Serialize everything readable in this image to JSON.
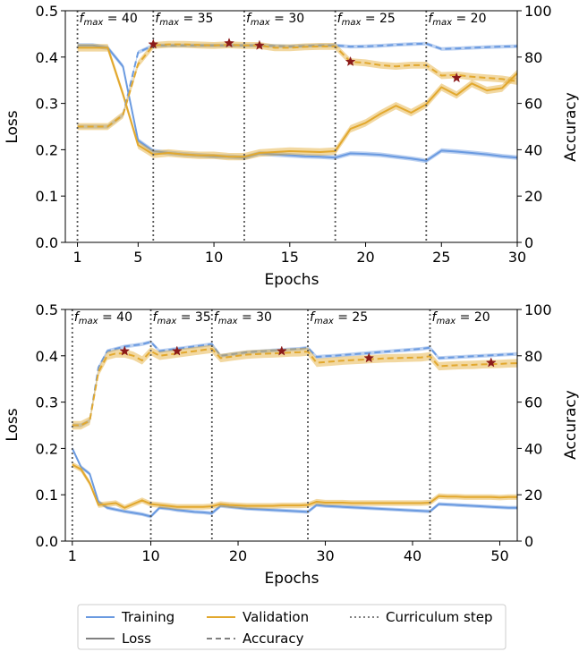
{
  "colors": {
    "training": "#6a9ae0",
    "validation": "#e2a82e",
    "marker": "#8b1a1a",
    "neutral": "#808080"
  },
  "legend": {
    "training": "Training",
    "validation": "Validation",
    "curriculum": "Curriculum step",
    "loss": "Loss",
    "accuracy": "Accuracy"
  },
  "chart_data": [
    {
      "type": "line",
      "xlabel": "Epochs",
      "ylabel_left": "Loss",
      "ylabel_right": "Accuracy",
      "xlim": [
        0.2,
        30
      ],
      "xticks": [
        1,
        5,
        10,
        15,
        20,
        25,
        30
      ],
      "ylim_left": [
        0,
        0.5
      ],
      "yticks_left": [
        0.0,
        0.1,
        0.2,
        0.3,
        0.4,
        0.5
      ],
      "ylim_right": [
        0,
        100
      ],
      "yticks_right": [
        0,
        20,
        40,
        60,
        80,
        100
      ],
      "curriculum_steps": [
        1,
        6,
        12,
        18,
        24
      ],
      "stage_labels": [
        {
          "x": 1,
          "base": "f",
          "sub": "max",
          "value": " = 40"
        },
        {
          "x": 6,
          "base": "f",
          "sub": "max",
          "value": " = 35"
        },
        {
          "x": 12,
          "base": "f",
          "sub": "max",
          "value": " = 30"
        },
        {
          "x": 18,
          "base": "f",
          "sub": "max",
          "value": " = 25"
        },
        {
          "x": 24,
          "base": "f",
          "sub": "max",
          "value": " = 20"
        }
      ],
      "series": [
        {
          "name": "Training",
          "metric": "Loss",
          "axis": "left",
          "band": 0.005,
          "x": [
            1,
            2,
            3,
            4,
            5,
            6,
            7,
            8,
            9,
            10,
            11,
            12,
            13,
            14,
            15,
            16,
            17,
            18,
            19,
            20,
            21,
            22,
            23,
            24,
            25,
            26,
            27,
            28,
            29,
            30
          ],
          "y": [
            0.425,
            0.425,
            0.42,
            0.38,
            0.22,
            0.197,
            0.193,
            0.19,
            0.188,
            0.186,
            0.185,
            0.183,
            0.192,
            0.19,
            0.188,
            0.186,
            0.185,
            0.183,
            0.192,
            0.191,
            0.189,
            0.185,
            0.181,
            0.176,
            0.198,
            0.196,
            0.193,
            0.19,
            0.186,
            0.183
          ]
        },
        {
          "name": "Validation",
          "metric": "Loss",
          "axis": "left",
          "band": 0.008,
          "x": [
            1,
            2,
            3,
            4,
            5,
            6,
            7,
            8,
            9,
            10,
            11,
            12,
            13,
            14,
            15,
            16,
            17,
            18,
            19,
            20,
            21,
            22,
            23,
            24,
            25,
            26,
            27,
            28,
            29,
            30
          ],
          "y": [
            0.42,
            0.42,
            0.42,
            0.32,
            0.21,
            0.19,
            0.193,
            0.19,
            0.188,
            0.188,
            0.185,
            0.185,
            0.193,
            0.195,
            0.197,
            0.196,
            0.195,
            0.197,
            0.245,
            0.258,
            0.278,
            0.295,
            0.28,
            0.298,
            0.335,
            0.318,
            0.343,
            0.328,
            0.333,
            0.365
          ]
        },
        {
          "name": "Training",
          "metric": "Accuracy",
          "axis": "right",
          "band": 0.8,
          "x": [
            1,
            2,
            3,
            4,
            5,
            6,
            7,
            8,
            9,
            10,
            11,
            12,
            13,
            14,
            15,
            16,
            17,
            18,
            19,
            20,
            21,
            22,
            23,
            24,
            25,
            26,
            27,
            28,
            29,
            30
          ],
          "y": [
            50,
            50,
            50,
            55,
            82,
            85,
            85,
            85,
            85,
            85,
            85,
            85,
            85,
            84.8,
            84.6,
            84.8,
            85,
            85,
            84.5,
            84.6,
            84.9,
            85.3,
            85.6,
            85.8,
            83.5,
            83.7,
            84,
            84.3,
            84.5,
            84.7
          ]
        },
        {
          "name": "Validation",
          "metric": "Accuracy",
          "axis": "right",
          "band": 1.5,
          "x": [
            1,
            2,
            3,
            4,
            5,
            6,
            7,
            8,
            9,
            10,
            11,
            12,
            13,
            14,
            15,
            16,
            17,
            18,
            19,
            20,
            21,
            22,
            23,
            24,
            25,
            26,
            27,
            28,
            29,
            30
          ],
          "y": [
            50,
            50,
            50,
            55,
            77,
            85,
            85.5,
            85.5,
            85.2,
            85,
            85.3,
            85,
            85,
            84,
            84,
            84.4,
            84.6,
            84.6,
            78,
            77.5,
            76.5,
            76,
            76.5,
            76.5,
            72,
            72.3,
            71.5,
            71,
            70.5,
            69.5
          ]
        }
      ],
      "best_markers": [
        {
          "x": 6,
          "y": 85.5
        },
        {
          "x": 11,
          "y": 86
        },
        {
          "x": 13,
          "y": 85
        },
        {
          "x": 19,
          "y": 78
        },
        {
          "x": 26,
          "y": 71
        }
      ]
    },
    {
      "type": "line",
      "xlabel": "Epochs",
      "ylabel_left": "Loss",
      "ylabel_right": "Accuracy",
      "xlim": [
        0.2,
        52
      ],
      "xticks": [
        1,
        10,
        20,
        30,
        40,
        50
      ],
      "ylim_left": [
        0,
        0.5
      ],
      "yticks_left": [
        0.0,
        0.1,
        0.2,
        0.3,
        0.4,
        0.5
      ],
      "ylim_right": [
        0,
        100
      ],
      "yticks_right": [
        0,
        20,
        40,
        60,
        80,
        100
      ],
      "curriculum_steps": [
        1,
        10,
        17,
        28,
        42
      ],
      "stage_labels": [
        {
          "x": 1,
          "base": "f",
          "sub": "max",
          "value": " = 40"
        },
        {
          "x": 10,
          "base": "f",
          "sub": "max",
          "value": " = 35"
        },
        {
          "x": 17,
          "base": "f",
          "sub": "max",
          "value": " = 30"
        },
        {
          "x": 28,
          "base": "f",
          "sub": "max",
          "value": " = 25"
        },
        {
          "x": 42,
          "base": "f",
          "sub": "max",
          "value": " = 20"
        }
      ],
      "series": [
        {
          "name": "Training",
          "metric": "Loss",
          "axis": "left",
          "band": 0.004,
          "x": [
            1,
            2,
            3,
            4,
            5,
            6,
            7,
            8,
            9,
            10,
            11,
            12,
            13,
            14,
            15,
            16,
            17,
            18,
            19,
            20,
            21,
            22,
            23,
            24,
            25,
            26,
            27,
            28,
            29,
            30,
            31,
            32,
            33,
            34,
            35,
            36,
            37,
            38,
            39,
            40,
            41,
            42,
            43,
            44,
            45,
            46,
            47,
            48,
            49,
            50,
            51,
            52
          ],
          "y": [
            0.2,
            0.16,
            0.145,
            0.085,
            0.072,
            0.068,
            0.064,
            0.061,
            0.058,
            0.053,
            0.072,
            0.07,
            0.067,
            0.065,
            0.063,
            0.062,
            0.06,
            0.076,
            0.074,
            0.072,
            0.07,
            0.069,
            0.068,
            0.067,
            0.066,
            0.065,
            0.064,
            0.063,
            0.078,
            0.076,
            0.075,
            0.074,
            0.073,
            0.072,
            0.071,
            0.07,
            0.069,
            0.068,
            0.067,
            0.066,
            0.065,
            0.064,
            0.08,
            0.079,
            0.078,
            0.077,
            0.076,
            0.075,
            0.074,
            0.073,
            0.072,
            0.072
          ]
        },
        {
          "name": "Validation",
          "metric": "Loss",
          "axis": "left",
          "band": 0.006,
          "x": [
            1,
            2,
            3,
            4,
            5,
            6,
            7,
            8,
            9,
            10,
            11,
            12,
            13,
            14,
            15,
            16,
            17,
            18,
            19,
            20,
            21,
            22,
            23,
            24,
            25,
            26,
            27,
            28,
            29,
            30,
            31,
            32,
            33,
            34,
            35,
            36,
            37,
            38,
            39,
            40,
            41,
            42,
            43,
            44,
            45,
            46,
            47,
            48,
            49,
            50,
            51,
            52
          ],
          "y": [
            0.165,
            0.155,
            0.125,
            0.078,
            0.08,
            0.082,
            0.072,
            0.08,
            0.088,
            0.08,
            0.078,
            0.076,
            0.074,
            0.074,
            0.074,
            0.074,
            0.075,
            0.08,
            0.078,
            0.077,
            0.076,
            0.076,
            0.076,
            0.076,
            0.077,
            0.077,
            0.077,
            0.078,
            0.085,
            0.083,
            0.083,
            0.083,
            0.082,
            0.082,
            0.082,
            0.082,
            0.082,
            0.082,
            0.082,
            0.082,
            0.082,
            0.083,
            0.097,
            0.096,
            0.096,
            0.095,
            0.095,
            0.095,
            0.095,
            0.094,
            0.095,
            0.095
          ]
        },
        {
          "name": "Training",
          "metric": "Accuracy",
          "axis": "right",
          "band": 0.8,
          "x": [
            1,
            2,
            3,
            4,
            5,
            6,
            7,
            8,
            9,
            10,
            11,
            12,
            13,
            14,
            15,
            16,
            17,
            18,
            19,
            20,
            21,
            22,
            23,
            24,
            25,
            26,
            27,
            28,
            29,
            30,
            31,
            32,
            33,
            34,
            35,
            36,
            37,
            38,
            39,
            40,
            41,
            42,
            43,
            44,
            45,
            46,
            47,
            48,
            49,
            50,
            51,
            52
          ],
          "y": [
            50,
            50,
            52,
            75,
            82,
            83,
            84,
            84.5,
            85,
            86,
            82,
            82.5,
            83,
            83.5,
            84,
            84.5,
            85,
            80,
            80.5,
            81,
            81.5,
            81.8,
            82,
            82.3,
            82.5,
            82.8,
            83,
            83.5,
            79.5,
            79.8,
            80,
            80.3,
            80.6,
            80.9,
            81.2,
            81.5,
            81.8,
            82.1,
            82.4,
            82.7,
            83,
            83.5,
            79,
            79.2,
            79.4,
            79.6,
            79.8,
            80,
            80.2,
            80.4,
            80.6,
            80.8
          ]
        },
        {
          "name": "Validation",
          "metric": "Accuracy",
          "axis": "right",
          "band": 1.8,
          "x": [
            1,
            2,
            3,
            4,
            5,
            6,
            7,
            8,
            9,
            10,
            11,
            12,
            13,
            14,
            15,
            16,
            17,
            18,
            19,
            20,
            21,
            22,
            23,
            24,
            25,
            26,
            27,
            28,
            29,
            30,
            31,
            32,
            33,
            34,
            35,
            36,
            37,
            38,
            39,
            40,
            41,
            42,
            43,
            44,
            45,
            46,
            47,
            48,
            49,
            50,
            51,
            52
          ],
          "y": [
            50,
            50,
            52,
            73,
            80,
            81,
            81,
            80,
            78,
            82,
            80,
            80.5,
            81,
            81.5,
            82,
            82.5,
            83,
            79,
            79.5,
            80,
            80.5,
            80.7,
            80.9,
            81,
            81.2,
            81.4,
            81.5,
            81.8,
            77,
            77.3,
            77.6,
            77.9,
            78.1,
            78.3,
            78.5,
            78.7,
            78.9,
            79,
            79.1,
            79.2,
            79.3,
            79.8,
            75.5,
            75.7,
            75.9,
            76,
            76.1,
            76.3,
            76.4,
            76.5,
            76.7,
            76.8
          ]
        }
      ],
      "best_markers": [
        {
          "x": 7,
          "y": 82
        },
        {
          "x": 13,
          "y": 82
        },
        {
          "x": 25,
          "y": 82
        },
        {
          "x": 35,
          "y": 79
        },
        {
          "x": 49,
          "y": 77
        }
      ]
    }
  ]
}
